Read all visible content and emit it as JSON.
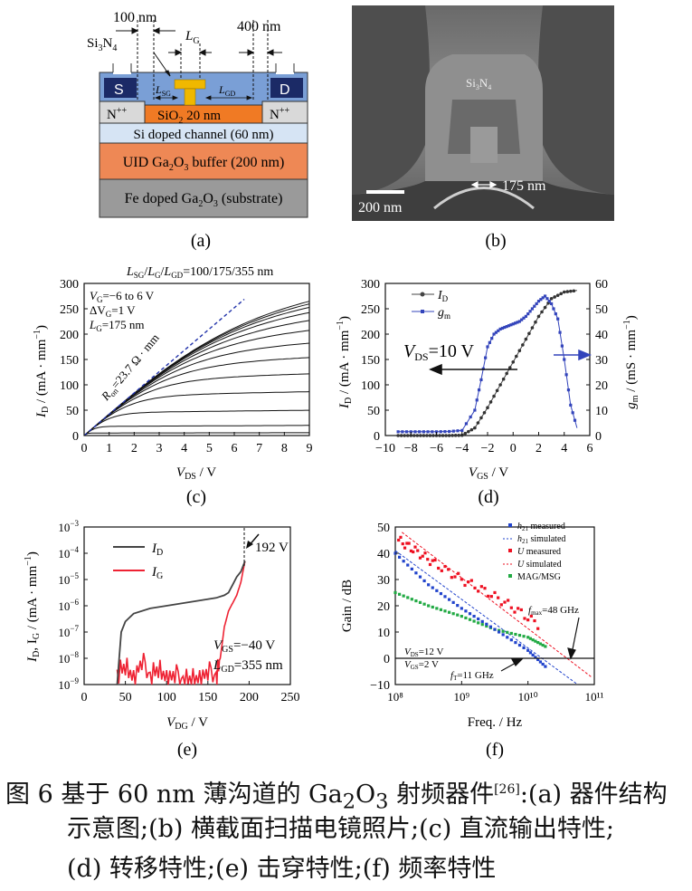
{
  "panel_a": {
    "label": "(a)",
    "dim_100": "100 nm",
    "dim_400": "400 nm",
    "lg": "L",
    "lg_sub": "G",
    "si3n4": "Si",
    "si3n4_sub": "3",
    "si3n4_n": "N",
    "si3n4_sub2": "4",
    "s": "S",
    "d": "D",
    "lsg": "L",
    "lsg_sub": "SG",
    "lgd": "L",
    "lgd_sub": "GD",
    "nplus": "N",
    "nplus_sup": "++",
    "sio2": "SiO",
    "sio2_sub": "2",
    "sio2_rest": " 20 nm",
    "channel": "Si doped channel (60 nm)",
    "buffer_a": "UID Ga",
    "buffer_sub1": "2",
    "buffer_b": "O",
    "buffer_sub2": "3",
    "buffer_c": " buffer (200 nm)",
    "substrate_a": "Fe doped Ga",
    "substrate_sub1": "2",
    "substrate_b": "O",
    "substrate_sub2": "3",
    "substrate_c": " (substrate)",
    "colors": {
      "passivation": "#7a9fd6",
      "sd": "#1b2a66",
      "gate": "#f0b800",
      "nplus": "#d9d9d9",
      "sio2": "#f07a24",
      "channel": "#d6e4f4",
      "buffer": "#ee8855",
      "substrate": "#9a9a9a"
    }
  },
  "panel_b": {
    "label": "(b)",
    "si3n4": "Si",
    "si3n4_sub": "3",
    "si3n4_n": "N",
    "si3n4_sub2": "4",
    "width": "175 nm",
    "scale": "200 nm"
  },
  "panel_c": {
    "label": "(c)",
    "title": "L",
    "title_full": "SG/LG/LGD=100/175/355 nm",
    "ylabel": "I",
    "ylabel_sub": "D",
    "ylabel_rest": " / (mA · mm",
    "ylabel_sup": "−1",
    "ylabel_end": ")",
    "xlabel": "V",
    "xlabel_sub": "DS",
    "xlabel_rest": " / V",
    "ann1": "V",
    "ann1_sub": "G",
    "ann1_rest": "=−6 to 6 V",
    "ann2": "ΔV",
    "ann2_sub": "G",
    "ann2_rest": "=1 V",
    "ann3": "L",
    "ann3_sub": "G",
    "ann3_rest": "=175 nm",
    "ron": "R",
    "ron_sub": "on",
    "ron_rest": "=23.7 Ω · mm"
  },
  "panel_d": {
    "label": "(d)",
    "ylabel_left": "I",
    "ylabel_left_sub": "D",
    "ylabel_left_rest": " / (mA · mm",
    "ylabel_left_sup": "−1",
    "ylabel_left_end": ")",
    "ylabel_right": "g",
    "ylabel_right_sub": "m",
    "ylabel_right_rest": " / (mS · mm",
    "ylabel_right_sup": "−1",
    "ylabel_right_end": ")",
    "xlabel": "V",
    "xlabel_sub": "GS",
    "xlabel_rest": " / V",
    "legend_id": "I",
    "legend_id_sub": "D",
    "legend_gm": "g",
    "legend_gm_sub": "m",
    "vds": "V",
    "vds_sub": "DS",
    "vds_rest": "=10 V"
  },
  "panel_e": {
    "label": "(e)",
    "ylabel": "I",
    "ylabel_sub": "D",
    "ylabel_mid": ", I",
    "ylabel_sub2": "G",
    "ylabel_rest": " / (mA · mm",
    "ylabel_sup": "−1",
    "ylabel_end": ")",
    "xlabel": "V",
    "xlabel_sub": "DG",
    "xlabel_rest": " / V",
    "legend_id": "I",
    "legend_id_sub": "D",
    "legend_ig": "I",
    "legend_ig_sub": "G",
    "bv": "192 V",
    "vgs": "V",
    "vgs_sub": "GS",
    "vgs_rest": "=−40 V",
    "lgd": "L",
    "lgd_sub": "GD",
    "lgd_rest": "=355 nm"
  },
  "panel_f": {
    "label": "(f)",
    "ylabel": "Gain / dB",
    "xlabel": "Freq. / Hz",
    "leg1": "h",
    "leg1_sub": "21",
    "leg1_rest": " measured",
    "leg2": "h",
    "leg2_sub": "21",
    "leg2_rest": " simulated",
    "leg3": "U",
    "leg3_rest": " measured",
    "leg4": "U",
    "leg4_rest": " simulated",
    "leg5": "MAG/MSG",
    "vds": "V",
    "vds_sub": "DS",
    "vds_rest": "=12 V",
    "vgs": "V",
    "vgs_sub": "GS",
    "vgs_rest": "=2 V",
    "fmax": "f",
    "fmax_sub": "max",
    "fmax_rest": "=48 GHz",
    "ft": "f",
    "ft_sub": "T",
    "ft_rest": "=11 GHz"
  },
  "chart_data": [
    {
      "type": "line",
      "panel": "c",
      "xlabel": "VDS / V",
      "ylabel": "ID / (mA·mm−1)",
      "xlim": [
        0,
        9
      ],
      "ylim": [
        0,
        300
      ],
      "xticks": [
        "0",
        "1",
        "2",
        "3",
        "4",
        "5",
        "6",
        "7",
        "8",
        "9"
      ],
      "yticks": [
        "0",
        "50",
        "100",
        "150",
        "200",
        "250",
        "300"
      ],
      "series_sat_values": [
        5,
        18,
        45,
        78,
        110,
        140,
        168,
        195,
        218,
        238,
        252,
        262,
        270
      ],
      "ron_slope_mA_per_V": 42
    },
    {
      "type": "scatter",
      "panel": "d",
      "xlabel": "VGS / V",
      "xlim": [
        -10,
        6
      ],
      "ylim_left": [
        0,
        300
      ],
      "ylim_right": [
        0,
        60
      ],
      "xticks": [
        "−10",
        "−8",
        "−6",
        "−4",
        "−2",
        "0",
        "2",
        "4",
        "6"
      ],
      "yticks_left": [
        "0",
        "50",
        "100",
        "150",
        "200",
        "250",
        "300"
      ],
      "yticks_right": [
        "0",
        "10",
        "20",
        "30",
        "40",
        "50",
        "60"
      ],
      "id_x": [
        -9,
        -8,
        -7,
        -6,
        -5,
        -4,
        -3,
        -2,
        -1,
        0,
        1,
        2,
        3,
        4,
        5
      ],
      "id_y": [
        0,
        0,
        0,
        0,
        0,
        0.5,
        15,
        55,
        100,
        145,
        190,
        235,
        270,
        283,
        286
      ],
      "gm_x": [
        -9,
        -8,
        -7,
        -6,
        -5,
        -4,
        -3,
        -2.5,
        -2,
        -1.5,
        -1,
        -0.5,
        0,
        0.5,
        1,
        1.5,
        2,
        2.5,
        3,
        3.5,
        4,
        4.5,
        5
      ],
      "gm_y": [
        1.5,
        1.5,
        1.5,
        1.5,
        1.6,
        2,
        10,
        22,
        35,
        40,
        42,
        43,
        44,
        45,
        47,
        50,
        53,
        55,
        52,
        46,
        30,
        12,
        3
      ]
    },
    {
      "type": "line",
      "panel": "e",
      "xlabel": "VDG / V",
      "xlim": [
        0,
        250
      ],
      "ylim_log": [
        -9,
        -3
      ],
      "xticks": [
        "0",
        "50",
        "100",
        "150",
        "200",
        "250"
      ],
      "yticks": [
        "10−9",
        "10−8",
        "10−7",
        "10−6",
        "10−5",
        "10−4",
        "10−3"
      ],
      "id_x": [
        40,
        45,
        50,
        60,
        80,
        100,
        130,
        160,
        170,
        175,
        180,
        185,
        190,
        195
      ],
      "id_logy": [
        -9,
        -7,
        -6.6,
        -6.3,
        -6.1,
        -6.0,
        -5.85,
        -5.7,
        -5.6,
        -5.5,
        -5.2,
        -4.9,
        -4.7,
        -4.3
      ],
      "ig_x": [
        40,
        50,
        60,
        70,
        80,
        90,
        100,
        110,
        120,
        130,
        140,
        150,
        160,
        165,
        170,
        175,
        180,
        185,
        190,
        195
      ],
      "ig_logy": [
        -8.7,
        -8.2,
        -8.9,
        -8.0,
        -8.8,
        -8.3,
        -8.9,
        -8.5,
        -8.95,
        -8.7,
        -8.9,
        -8.4,
        -8.8,
        -8.0,
        -6.8,
        -6.2,
        -5.9,
        -5.6,
        -5.1,
        -4.3
      ],
      "breakdown_V": 192
    },
    {
      "type": "line",
      "panel": "f",
      "xlabel": "Freq. / Hz",
      "ylabel": "Gain / dB",
      "xlim_log": [
        8,
        11
      ],
      "ylim": [
        -10,
        50
      ],
      "xticks": [
        "10⁸",
        "10⁹",
        "10¹⁰",
        "10¹¹"
      ],
      "yticks": [
        "−10",
        "0",
        "10",
        "20",
        "30",
        "40",
        "50"
      ],
      "h21_logx": [
        8.0,
        8.5,
        9.0,
        9.5,
        10.0,
        10.3
      ],
      "h21_y": [
        40,
        28,
        19,
        11,
        3,
        -4
      ],
      "U_logx": [
        8.05,
        8.3,
        8.6,
        9.0,
        9.4,
        9.8,
        10.2
      ],
      "U_y": [
        45,
        41,
        36,
        30,
        25,
        19,
        12
      ],
      "mag_logx": [
        8.0,
        8.5,
        9.0,
        9.5,
        10.0,
        10.3
      ],
      "mag_y": [
        25,
        20,
        16,
        11,
        8,
        4
      ],
      "fT_GHz": 11,
      "fmax_GHz": 48
    }
  ],
  "caption": {
    "line1_a": "图 6  基于 60 nm 薄沟道的 Ga",
    "line1_sub1": "2",
    "line1_b": "O",
    "line1_sub2": "3",
    "line1_c": " 射频器件",
    "line1_ref": "[26]",
    "line1_d": ":(a) 器件结构",
    "line2": "示意图;(b) 横截面扫描电镜照片;(c) 直流输出特性;",
    "line3": "(d) 转移特性;(e) 击穿特性;(f) 频率特性"
  }
}
